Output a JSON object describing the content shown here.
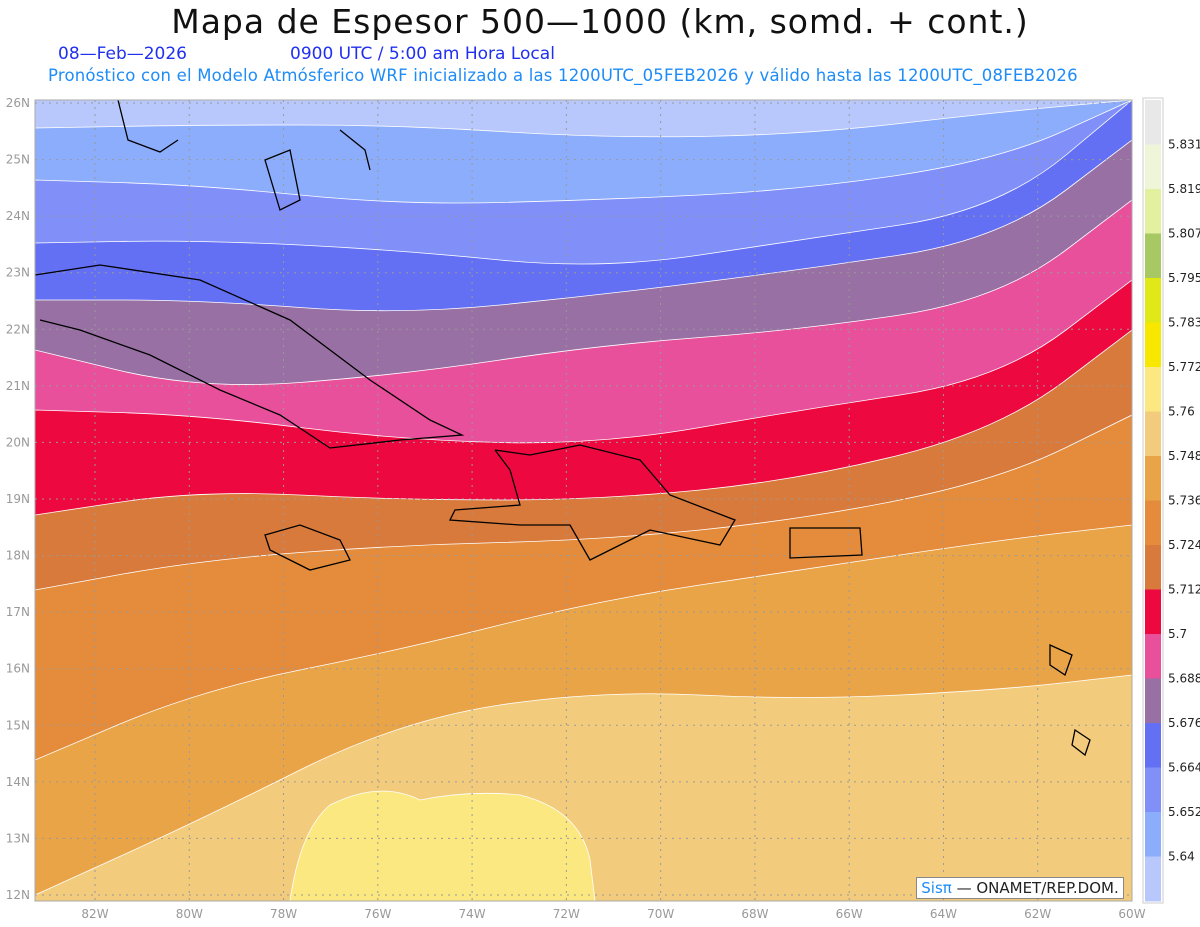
{
  "header": {
    "title": "Mapa de Espesor 500—1000 (km, somd. + cont.)",
    "date": "08—Feb—2026",
    "time": "0900 UTC / 5:00 am Hora Local",
    "subtitle": "Pronóstico con el Modelo Atmósferico WRF inicializado a las 1200UTC_05FEB2026 y válido hasta las  1200UTC_08FEB2026"
  },
  "map": {
    "lat_labels": [
      "26N",
      "25N",
      "24N",
      "23N",
      "22N",
      "21N",
      "20N",
      "19N",
      "18N",
      "17N",
      "16N",
      "15N",
      "14N",
      "13N",
      "12N"
    ],
    "lon_labels": [
      "82W",
      "80W",
      "78W",
      "76W",
      "74W",
      "72W",
      "70W",
      "68W",
      "66W",
      "64W",
      "62W",
      "60W"
    ],
    "credit_brand": "Sisπ",
    "credit_text": " — ONAMET/REP.DOM."
  },
  "colorbar": {
    "colors": [
      "#e8e8e8",
      "#eef5d8",
      "#e2f0a0",
      "#a8c864",
      "#e0e818",
      "#f8e800",
      "#fce880",
      "#f2cc7c",
      "#eaa448",
      "#e48c3c",
      "#d87a3c",
      "#ee0840",
      "#e8509c",
      "#9870a4",
      "#6470f4",
      "#8090f8",
      "#8cacfc",
      "#b8c8fc"
    ],
    "labels": [
      "5.831",
      "5.819",
      "5.807",
      "5.795",
      "5.783",
      "5.772",
      "5.76",
      "5.748",
      "5.736",
      "5.724",
      "5.712",
      "5.7",
      "5.688",
      "5.676",
      "5.664",
      "5.652",
      "5.64"
    ]
  }
}
